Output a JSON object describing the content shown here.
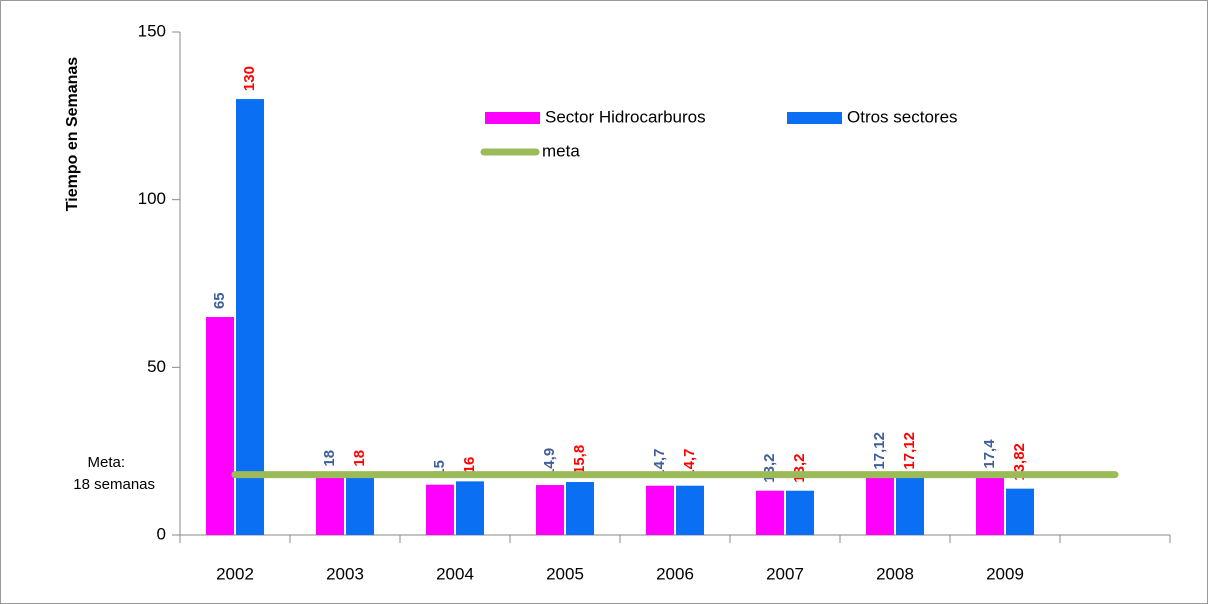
{
  "chart_data": {
    "type": "bar",
    "y_axis_label": "Tiempo en Semanas",
    "annotations": [
      "Meta:",
      "18 semanas"
    ],
    "categories": [
      "2002",
      "2003",
      "2004",
      "2005",
      "2006",
      "2007",
      "2008",
      "2009",
      null
    ],
    "series": [
      {
        "name": "Sector Hidrocarburos",
        "color": "#ff00ff",
        "label_color": "#3f5f9a",
        "values": [
          65,
          18,
          15,
          14.9,
          14.7,
          13.2,
          17.12,
          17.4,
          null
        ],
        "value_labels": [
          "65",
          "18",
          "15",
          "14,9",
          "14,7",
          "13,2",
          "17,12",
          "17,4",
          null
        ]
      },
      {
        "name": "Otros sectores",
        "color": "#0a6ff2",
        "label_color": "#ff0000",
        "values": [
          130,
          18,
          16,
          15.8,
          14.7,
          13.2,
          17.12,
          13.82,
          null
        ],
        "value_labels": [
          "130",
          "18",
          "16",
          "15,8",
          "14,7",
          "13,2",
          "17,12",
          "13,82",
          null
        ]
      },
      {
        "name": "meta",
        "type": "line",
        "color": "#9bbb59",
        "values": [
          18,
          18,
          18,
          18,
          18,
          18,
          18,
          18,
          18
        ]
      }
    ],
    "ylim": [
      0,
      150
    ],
    "yticks": [
      0,
      50,
      100,
      150
    ]
  }
}
